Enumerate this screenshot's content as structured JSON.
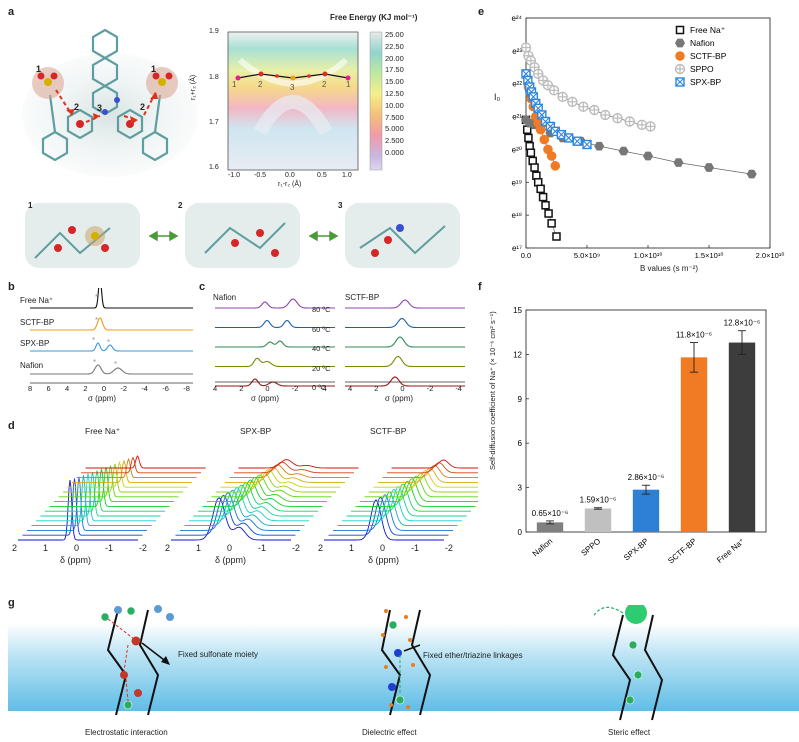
{
  "panel_labels": {
    "a": "a",
    "b": "b",
    "c": "c",
    "d": "d",
    "e": "e",
    "f": "f",
    "g": "g"
  },
  "panel_a": {
    "site_numbers": [
      "1",
      "2",
      "3",
      "2",
      "1"
    ],
    "map_title": "Free Energy (KJ mol⁻¹)",
    "map_xlabel": "r₁-r₂ (Å)",
    "map_ylabel": "r₁+r₂ (Å)",
    "map_xticks": [
      "-1.0",
      "-0.5",
      "0.0",
      "0.5",
      "1.0"
    ],
    "map_yticks": [
      "1.9",
      "1.8",
      "1.7",
      "1.6"
    ],
    "colorbar_ticks": [
      "25.00",
      "22.50",
      "20.00",
      "17.50",
      "15.00",
      "12.50",
      "10.00",
      "7.500",
      "5.000",
      "2.500",
      "0.000"
    ],
    "path_labels": [
      "1",
      "2",
      "3",
      "2",
      "1"
    ],
    "snapshot_labels": [
      "1",
      "2",
      "3"
    ],
    "colors": {
      "oxygen": "#d62728",
      "sulfur": "#d4b000",
      "carbon": "#5f9ea0",
      "path": "#e0301e"
    }
  },
  "panel_b": {
    "traces": [
      "Free Na⁺",
      "SCTF-BP",
      "SPX-BP",
      "Nafion"
    ],
    "trace_colors": [
      "#111111",
      "#f39c12",
      "#3498db",
      "#777777"
    ],
    "xticks": [
      "8",
      "6",
      "4",
      "2",
      "0",
      "-2",
      "-4",
      "-6",
      "-8"
    ],
    "xlabel": "σ (ppm)"
  },
  "panel_c": {
    "left_title": "Nafion",
    "right_title": "SCTF-BP",
    "temps": [
      "80 ºC",
      "60 ºC",
      "40 ºC",
      "20 ºC",
      "0 ºC"
    ],
    "temp_colors": [
      "#8e44ad",
      "#1f5fa8",
      "#2e8b57",
      "#7a8a00",
      "#a01010"
    ],
    "xticks_left": [
      "4",
      "2",
      "0",
      "-2",
      "-4"
    ],
    "xticks_right": [
      "4",
      "2",
      "0",
      "-2",
      "-4"
    ],
    "xlabel": "σ (ppm)"
  },
  "panel_d": {
    "titles": [
      "Free Na⁺",
      "SPX-BP",
      "SCTF-BP"
    ],
    "xticks": [
      "2",
      "1",
      "0",
      "-1",
      "-2"
    ],
    "xlabel": "δ (ppm)"
  },
  "panel_g": {
    "labels": [
      "Fixed sulfonate moiety",
      "Fixed ether/triazine linkages"
    ],
    "captions": [
      "Electrostatic interaction",
      "Dielectric effect",
      "Steric effect"
    ]
  },
  "chart_data": [
    {
      "panel": "e",
      "type": "scatter",
      "xlabel": "B values (s m⁻²)",
      "ylabel": "I₀",
      "xlim": [
        0,
        20000000000.0
      ],
      "ylim_exp": [
        17,
        24
      ],
      "y_scale": "log-e",
      "xticks": [
        "0.0",
        "5.0×10⁹",
        "1.0×10¹⁰",
        "1.5×10¹⁰",
        "2.0×10¹⁰"
      ],
      "yticks": [
        "e¹⁷",
        "e¹⁸",
        "e¹⁹",
        "e²⁰",
        "e²¹",
        "e²²",
        "e²³",
        "e²⁴"
      ],
      "legend_position": "top-right",
      "series": [
        {
          "name": "Free Na⁺",
          "marker": "square-open",
          "color": "#111111",
          "x": [
            0.0,
            0.1,
            0.2,
            0.3,
            0.4,
            0.55,
            0.7,
            0.85,
            1.0,
            1.2,
            1.4,
            1.6,
            1.85,
            2.1,
            2.5
          ],
          "lnI": [
            20.9,
            20.6,
            20.35,
            20.1,
            19.9,
            19.65,
            19.45,
            19.2,
            19.0,
            18.8,
            18.55,
            18.3,
            18.05,
            17.75,
            17.35
          ]
        },
        {
          "name": "Nafion",
          "marker": "hexagon",
          "color": "#777777",
          "x": [
            0.0,
            0.3,
            0.7,
            1.2,
            2.0,
            3.0,
            4.5,
            6.0,
            8.0,
            10.0,
            12.5,
            15.0,
            18.5
          ],
          "lnI": [
            20.9,
            20.8,
            20.75,
            20.7,
            20.5,
            20.35,
            20.25,
            20.1,
            19.95,
            19.8,
            19.6,
            19.45,
            19.25
          ]
        },
        {
          "name": "SCTF-BP",
          "marker": "circle",
          "color": "#f07b24",
          "x": [
            0.0,
            0.2,
            0.4,
            0.6,
            0.8,
            1.0,
            1.2,
            1.5,
            1.8,
            2.1,
            2.4
          ],
          "lnI": [
            22.3,
            21.9,
            21.55,
            21.3,
            21.0,
            20.8,
            20.6,
            20.3,
            20.0,
            19.8,
            19.5
          ]
        },
        {
          "name": "SPPO",
          "marker": "circle-cross",
          "color": "#bbbbbb",
          "x": [
            0.0,
            0.2,
            0.4,
            0.7,
            1.0,
            1.4,
            1.8,
            2.3,
            3.0,
            3.8,
            4.7,
            5.6,
            6.5,
            7.5,
            8.5,
            9.5,
            10.2
          ],
          "lnI": [
            23.1,
            22.85,
            22.7,
            22.5,
            22.3,
            22.1,
            21.95,
            21.8,
            21.6,
            21.45,
            21.3,
            21.2,
            21.05,
            20.95,
            20.85,
            20.75,
            20.7
          ]
        },
        {
          "name": "SPX-BP",
          "marker": "square-x",
          "color": "#2e86de",
          "x": [
            0.0,
            0.15,
            0.3,
            0.45,
            0.6,
            0.8,
            1.0,
            1.3,
            1.6,
            2.0,
            2.4,
            2.9,
            3.5,
            4.2,
            5.0
          ],
          "lnI": [
            22.3,
            22.1,
            21.9,
            21.75,
            21.6,
            21.4,
            21.25,
            21.05,
            20.85,
            20.7,
            20.55,
            20.45,
            20.35,
            20.25,
            20.15
          ]
        }
      ]
    },
    {
      "panel": "f",
      "type": "bar",
      "ylabel": "Self-diffusion coefficient of Na⁺ (× 10⁻⁶ cm² s⁻¹)",
      "ylim": [
        0,
        15
      ],
      "yticks": [
        "0",
        "3",
        "6",
        "9",
        "12",
        "15"
      ],
      "categories": [
        "Nafion",
        "SPPO",
        "SPX-BP",
        "SCTF-BP",
        "Free Na⁺"
      ],
      "values": [
        0.65,
        1.59,
        2.86,
        11.8,
        12.8
      ],
      "errors": [
        0.1,
        0.05,
        0.3,
        1.0,
        0.8
      ],
      "value_labels": [
        "0.65×10⁻⁶",
        "1.59×10⁻⁶",
        "2.86×10⁻⁶",
        "11.8×10⁻⁶",
        "12.8×10⁻⁶"
      ],
      "colors": [
        "#808080",
        "#c0c0c0",
        "#2e7fd6",
        "#f07b24",
        "#3d3d3d"
      ]
    }
  ]
}
